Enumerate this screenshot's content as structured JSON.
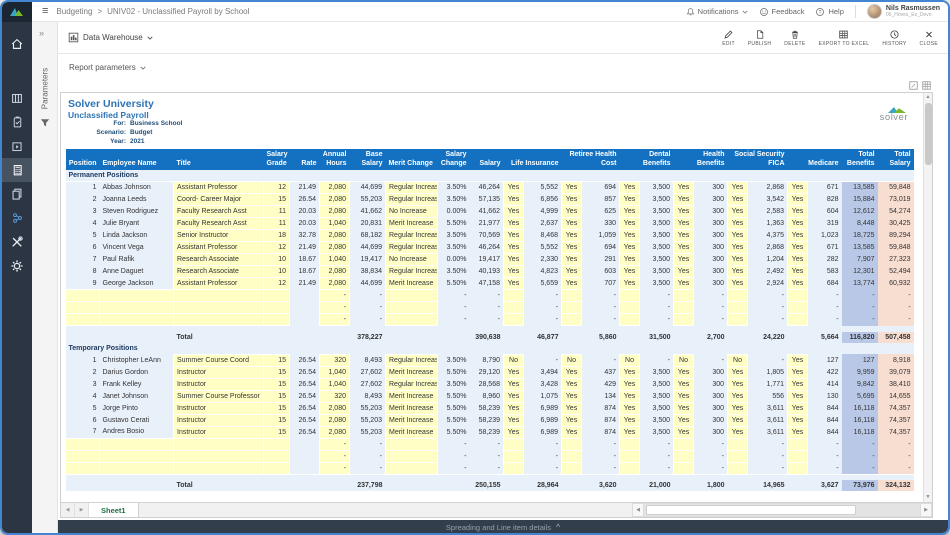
{
  "topbar": {
    "breadcrumb": [
      "Budgeting",
      "UNIV02 - Unclassified Payroll by School"
    ],
    "breadcrumb_separator": ">",
    "notifications_label": "Notifications",
    "feedback_label": "Feedback",
    "help_label": "Help",
    "user": {
      "name": "Nils Rasmussen",
      "subtitle": "06_Hoves_Es_Devo"
    }
  },
  "params_panel": {
    "label": "Parameters"
  },
  "toolbar": {
    "source_label": "Data Warehouse",
    "actions": [
      "EDIT",
      "PUBLISH",
      "DELETE",
      "EXPORT TO EXCEL",
      "HISTORY",
      "CLOSE"
    ]
  },
  "report_parameters_label": "Report parameters",
  "report": {
    "company": "Solver University",
    "title": "Unclassified Payroll",
    "meta": [
      {
        "label": "For:",
        "value": "Business School"
      },
      {
        "label": "Scenario:",
        "value": "Budget"
      },
      {
        "label": "Year:",
        "value": "2021"
      }
    ],
    "logo_text": "solver",
    "columns": [
      "Position",
      "Employee Name",
      "Title",
      "Salary\nGrade",
      "Rate",
      "Annual\nHours",
      "Base\nSalary",
      "Merit Change",
      "Salary\nChange",
      "Salary",
      "",
      "Life Insurance",
      "",
      "Retiree Health Cost",
      "",
      "Dental Benefits",
      "",
      "Health Benefits",
      "",
      "Social Security FICA",
      "",
      "Medicare",
      "Total\nBenefits",
      "Total\nSalary"
    ],
    "empty_row": [
      "",
      "",
      "",
      "",
      "",
      "-",
      "-",
      "",
      "-",
      "-",
      "",
      "-",
      "",
      "-",
      "",
      "-",
      "",
      "-",
      "",
      "-",
      "",
      "-",
      "-",
      "-"
    ],
    "sections": [
      {
        "label": "Permanent Positions",
        "rows": [
          [
            "1",
            "Abbas Johnson",
            "Assistant Professor",
            "12",
            "21.49",
            "2,080",
            "44,699",
            "Regular Increase",
            "3.50%",
            "46,264",
            "Yes",
            "5,552",
            "Yes",
            "694",
            "Yes",
            "3,500",
            "Yes",
            "300",
            "Yes",
            "2,868",
            "Yes",
            "671",
            "13,585",
            "59,848"
          ],
          [
            "2",
            "Joanna Leeds",
            "Coord- Career Major",
            "15",
            "26.54",
            "2,080",
            "55,203",
            "Regular Increase",
            "3.50%",
            "57,135",
            "Yes",
            "6,856",
            "Yes",
            "857",
            "Yes",
            "3,500",
            "Yes",
            "300",
            "Yes",
            "3,542",
            "Yes",
            "828",
            "15,884",
            "73,019"
          ],
          [
            "3",
            "Steven Rodriguez",
            "Faculty Research  Asst",
            "11",
            "20.03",
            "2,080",
            "41,662",
            "No Increase",
            "0.00%",
            "41,662",
            "Yes",
            "4,999",
            "Yes",
            "625",
            "Yes",
            "3,500",
            "Yes",
            "300",
            "Yes",
            "2,583",
            "Yes",
            "604",
            "12,612",
            "54,274"
          ],
          [
            "4",
            "Julie Bryant",
            "Faculty Research  Asst",
            "11",
            "20.03",
            "1,040",
            "20,831",
            "Merit Increase",
            "5.50%",
            "21,977",
            "Yes",
            "2,637",
            "Yes",
            "330",
            "Yes",
            "3,500",
            "Yes",
            "300",
            "Yes",
            "1,363",
            "Yes",
            "319",
            "8,448",
            "30,425"
          ],
          [
            "5",
            "Linda Jackson",
            "Senior Instructor",
            "18",
            "32.78",
            "2,080",
            "68,182",
            "Regular Increase",
            "3.50%",
            "70,569",
            "Yes",
            "8,468",
            "Yes",
            "1,059",
            "Yes",
            "3,500",
            "Yes",
            "300",
            "Yes",
            "4,375",
            "Yes",
            "1,023",
            "18,725",
            "89,294"
          ],
          [
            "6",
            "Vincent Vega",
            "Assistant Professor",
            "12",
            "21.49",
            "2,080",
            "44,699",
            "Regular Increase",
            "3.50%",
            "46,264",
            "Yes",
            "5,552",
            "Yes",
            "694",
            "Yes",
            "3,500",
            "Yes",
            "300",
            "Yes",
            "2,868",
            "Yes",
            "671",
            "13,585",
            "59,848"
          ],
          [
            "7",
            "Paul Rafik",
            "Research Associate",
            "10",
            "18.67",
            "1,040",
            "19,417",
            "No Increase",
            "0.00%",
            "19,417",
            "Yes",
            "2,330",
            "Yes",
            "291",
            "Yes",
            "3,500",
            "Yes",
            "300",
            "Yes",
            "1,204",
            "Yes",
            "282",
            "7,907",
            "27,323"
          ],
          [
            "8",
            "Anne Daguet",
            "Research Associate",
            "10",
            "18.67",
            "2,080",
            "38,834",
            "Regular Increase",
            "3.50%",
            "40,193",
            "Yes",
            "4,823",
            "Yes",
            "603",
            "Yes",
            "3,500",
            "Yes",
            "300",
            "Yes",
            "2,492",
            "Yes",
            "583",
            "12,301",
            "52,494"
          ],
          [
            "9",
            "George Jackson",
            "Assistant Professor",
            "12",
            "21.49",
            "2,080",
            "44,699",
            "Merit Increase",
            "5.50%",
            "47,158",
            "Yes",
            "5,659",
            "Yes",
            "707",
            "Yes",
            "3,500",
            "Yes",
            "300",
            "Yes",
            "2,924",
            "Yes",
            "684",
            "13,774",
            "60,932"
          ]
        ],
        "empty_rows": 3,
        "total_row": [
          "",
          "",
          "Total",
          "",
          "",
          "",
          "378,227",
          "",
          "",
          "390,638",
          "",
          "46,877",
          "",
          "5,860",
          "",
          "31,500",
          "",
          "2,700",
          "",
          "24,220",
          "",
          "5,664",
          "116,820",
          "507,458"
        ]
      },
      {
        "label": "Temporary Positions",
        "rows": [
          [
            "1",
            "Christopher LeAnn",
            "Summer Course Coord",
            "15",
            "26.54",
            "320",
            "8,493",
            "Regular Increase",
            "3.50%",
            "8,790",
            "No",
            "-",
            "No",
            "-",
            "No",
            "-",
            "No",
            "-",
            "No",
            "-",
            "Yes",
            "127",
            "127",
            "8,918"
          ],
          [
            "2",
            "Darius Gordon",
            "Instructor",
            "15",
            "26.54",
            "1,040",
            "27,602",
            "Merit Increase",
            "5.50%",
            "29,120",
            "Yes",
            "3,494",
            "Yes",
            "437",
            "Yes",
            "3,500",
            "Yes",
            "300",
            "Yes",
            "1,805",
            "Yes",
            "422",
            "9,959",
            "39,079"
          ],
          [
            "3",
            "Frank Kelley",
            "Instructor",
            "15",
            "26.54",
            "1,040",
            "27,602",
            "Regular Increase",
            "3.50%",
            "28,568",
            "Yes",
            "3,428",
            "Yes",
            "429",
            "Yes",
            "3,500",
            "Yes",
            "300",
            "Yes",
            "1,771",
            "Yes",
            "414",
            "9,842",
            "38,410"
          ],
          [
            "4",
            "Janet Johnson",
            "Summer Course Professor",
            "15",
            "26.54",
            "320",
            "8,493",
            "Merit Increase",
            "5.50%",
            "8,960",
            "Yes",
            "1,075",
            "Yes",
            "134",
            "Yes",
            "3,500",
            "Yes",
            "300",
            "Yes",
            "556",
            "Yes",
            "130",
            "5,695",
            "14,655"
          ],
          [
            "5",
            "Jorge Pinto",
            "Instructor",
            "15",
            "26.54",
            "2,080",
            "55,203",
            "Merit Increase",
            "5.50%",
            "58,239",
            "Yes",
            "6,989",
            "Yes",
            "874",
            "Yes",
            "3,500",
            "Yes",
            "300",
            "Yes",
            "3,611",
            "Yes",
            "844",
            "16,118",
            "74,357"
          ],
          [
            "6",
            "Gustavo Cerati",
            "Instructor",
            "15",
            "26.54",
            "2,080",
            "55,203",
            "Merit Increase",
            "5.50%",
            "58,239",
            "Yes",
            "6,989",
            "Yes",
            "874",
            "Yes",
            "3,500",
            "Yes",
            "300",
            "Yes",
            "3,611",
            "Yes",
            "844",
            "16,118",
            "74,357"
          ],
          [
            "7",
            "Andres Bosio",
            "Instructor",
            "15",
            "26.54",
            "2,080",
            "55,203",
            "Merit Increase",
            "5.50%",
            "58,239",
            "Yes",
            "6,989",
            "Yes",
            "874",
            "Yes",
            "3,500",
            "Yes",
            "300",
            "Yes",
            "3,611",
            "Yes",
            "844",
            "16,118",
            "74,357"
          ]
        ],
        "empty_rows": 3,
        "total_row": [
          "",
          "",
          "Total",
          "",
          "",
          "",
          "237,798",
          "",
          "",
          "250,155",
          "",
          "28,964",
          "",
          "3,620",
          "",
          "21,000",
          "",
          "1,800",
          "",
          "14,965",
          "",
          "3,627",
          "73,976",
          "324,132"
        ]
      }
    ]
  },
  "footer": {
    "sheet_tab": "Sheet1",
    "bottom_bar_label": "Spreading and Line item details"
  }
}
